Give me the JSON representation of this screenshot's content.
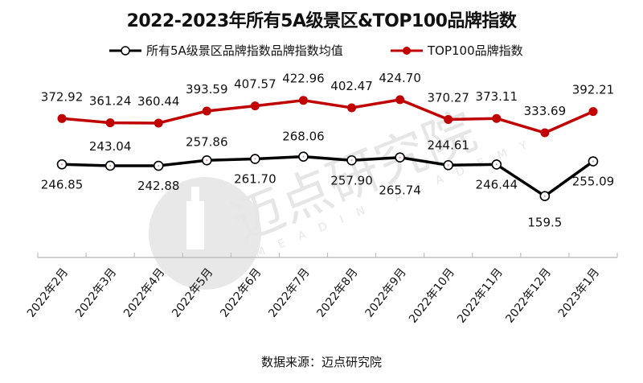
{
  "title": "2022-2023年所有5A级景区&TOP100品牌指数",
  "legend": {
    "series1": "所有5A级景区品牌指数品牌指数均值",
    "series2": "TOP100品牌指数"
  },
  "source": "数据来源：迈点研究院",
  "watermark": {
    "cn": "迈点研究院",
    "en": "MEADIN ACADEMY"
  },
  "colors": {
    "series1": "#000000",
    "series2": "#c00000",
    "axis": "#bfbfbf"
  },
  "chart_data": {
    "type": "line",
    "title": "2022-2023年所有5A级景区&TOP100品牌指数",
    "categories": [
      "2022年2月",
      "2022年3月",
      "2022年4月",
      "2022年5月",
      "2022年6月",
      "2022年7月",
      "2022年8月",
      "2022年9月",
      "2022年10月",
      "2022年11月",
      "2022年12月",
      "2023年1月"
    ],
    "series": [
      {
        "name": "所有5A级景区品牌指数品牌指数均值",
        "color": "#000000",
        "values": [
          246.85,
          243.04,
          242.88,
          257.86,
          261.7,
          268.06,
          257.9,
          265.74,
          244.61,
          246.44,
          159.5,
          255.09
        ],
        "labels": [
          "246.85",
          "243.04",
          "242.88",
          "257.86",
          "261.70",
          "268.06",
          "257.90",
          "265.74",
          "244.61",
          "246.44",
          "159.5",
          "255.09"
        ]
      },
      {
        "name": "TOP100品牌指数",
        "color": "#c00000",
        "values": [
          372.92,
          361.24,
          360.44,
          393.59,
          407.57,
          422.96,
          402.47,
          424.7,
          370.27,
          373.11,
          333.69,
          392.21
        ],
        "labels": [
          "372.92",
          "361.24",
          "360.44",
          "393.59",
          "407.57",
          "422.96",
          "402.47",
          "424.70",
          "370.27",
          "373.11",
          "333.69",
          "392.21"
        ]
      }
    ],
    "xlabel": "",
    "ylabel": "",
    "grid": false,
    "legend_position": "top",
    "yaxis_visible": false
  }
}
